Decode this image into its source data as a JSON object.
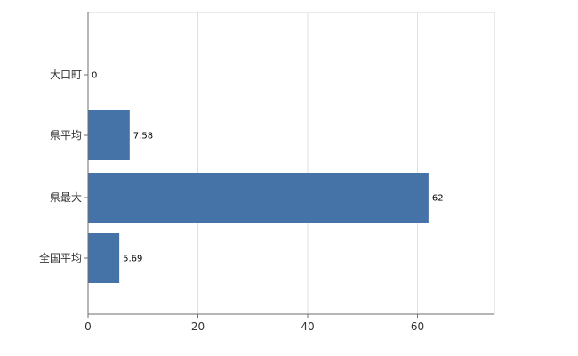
{
  "chart_data": {
    "type": "bar",
    "orientation": "horizontal",
    "title": "",
    "xlabel": "",
    "ylabel": "",
    "categories": [
      "大口町",
      "県平均",
      "県最大",
      "全国平均"
    ],
    "values": [
      0,
      7.58,
      62,
      5.69
    ],
    "value_labels": [
      "0",
      "7.58",
      "62",
      "5.69"
    ],
    "xticks": [
      0,
      20,
      40,
      60
    ],
    "xtick_labels": [
      "0",
      "20",
      "40",
      "60"
    ],
    "xlim": [
      0,
      74
    ],
    "grid": "vertical",
    "legend": "none",
    "bar_color": "#4572a7",
    "grid_color": "#e0e0e0",
    "border_color": "#d6d6d6",
    "axis_color": "#6e6e6e",
    "label_color": "#333333",
    "value_label_color": "#000000"
  }
}
